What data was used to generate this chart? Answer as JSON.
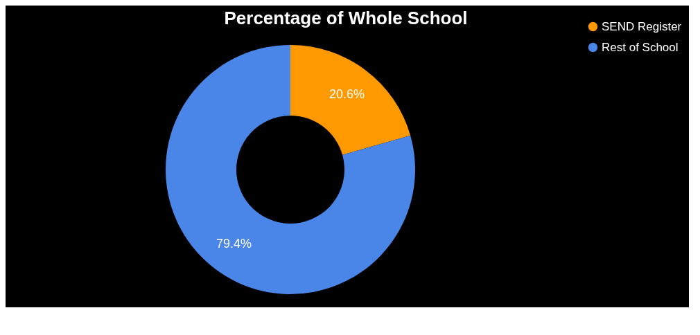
{
  "chart_data": {
    "type": "donut",
    "title": "Percentage of Whole School",
    "categories": [
      "SEND Register",
      "Rest of School"
    ],
    "values": [
      20.6,
      79.4
    ],
    "colors": [
      "#ff9900",
      "#4a86e8"
    ],
    "value_labels": [
      "20.6%",
      "79.4%"
    ],
    "legend": "top right"
  }
}
